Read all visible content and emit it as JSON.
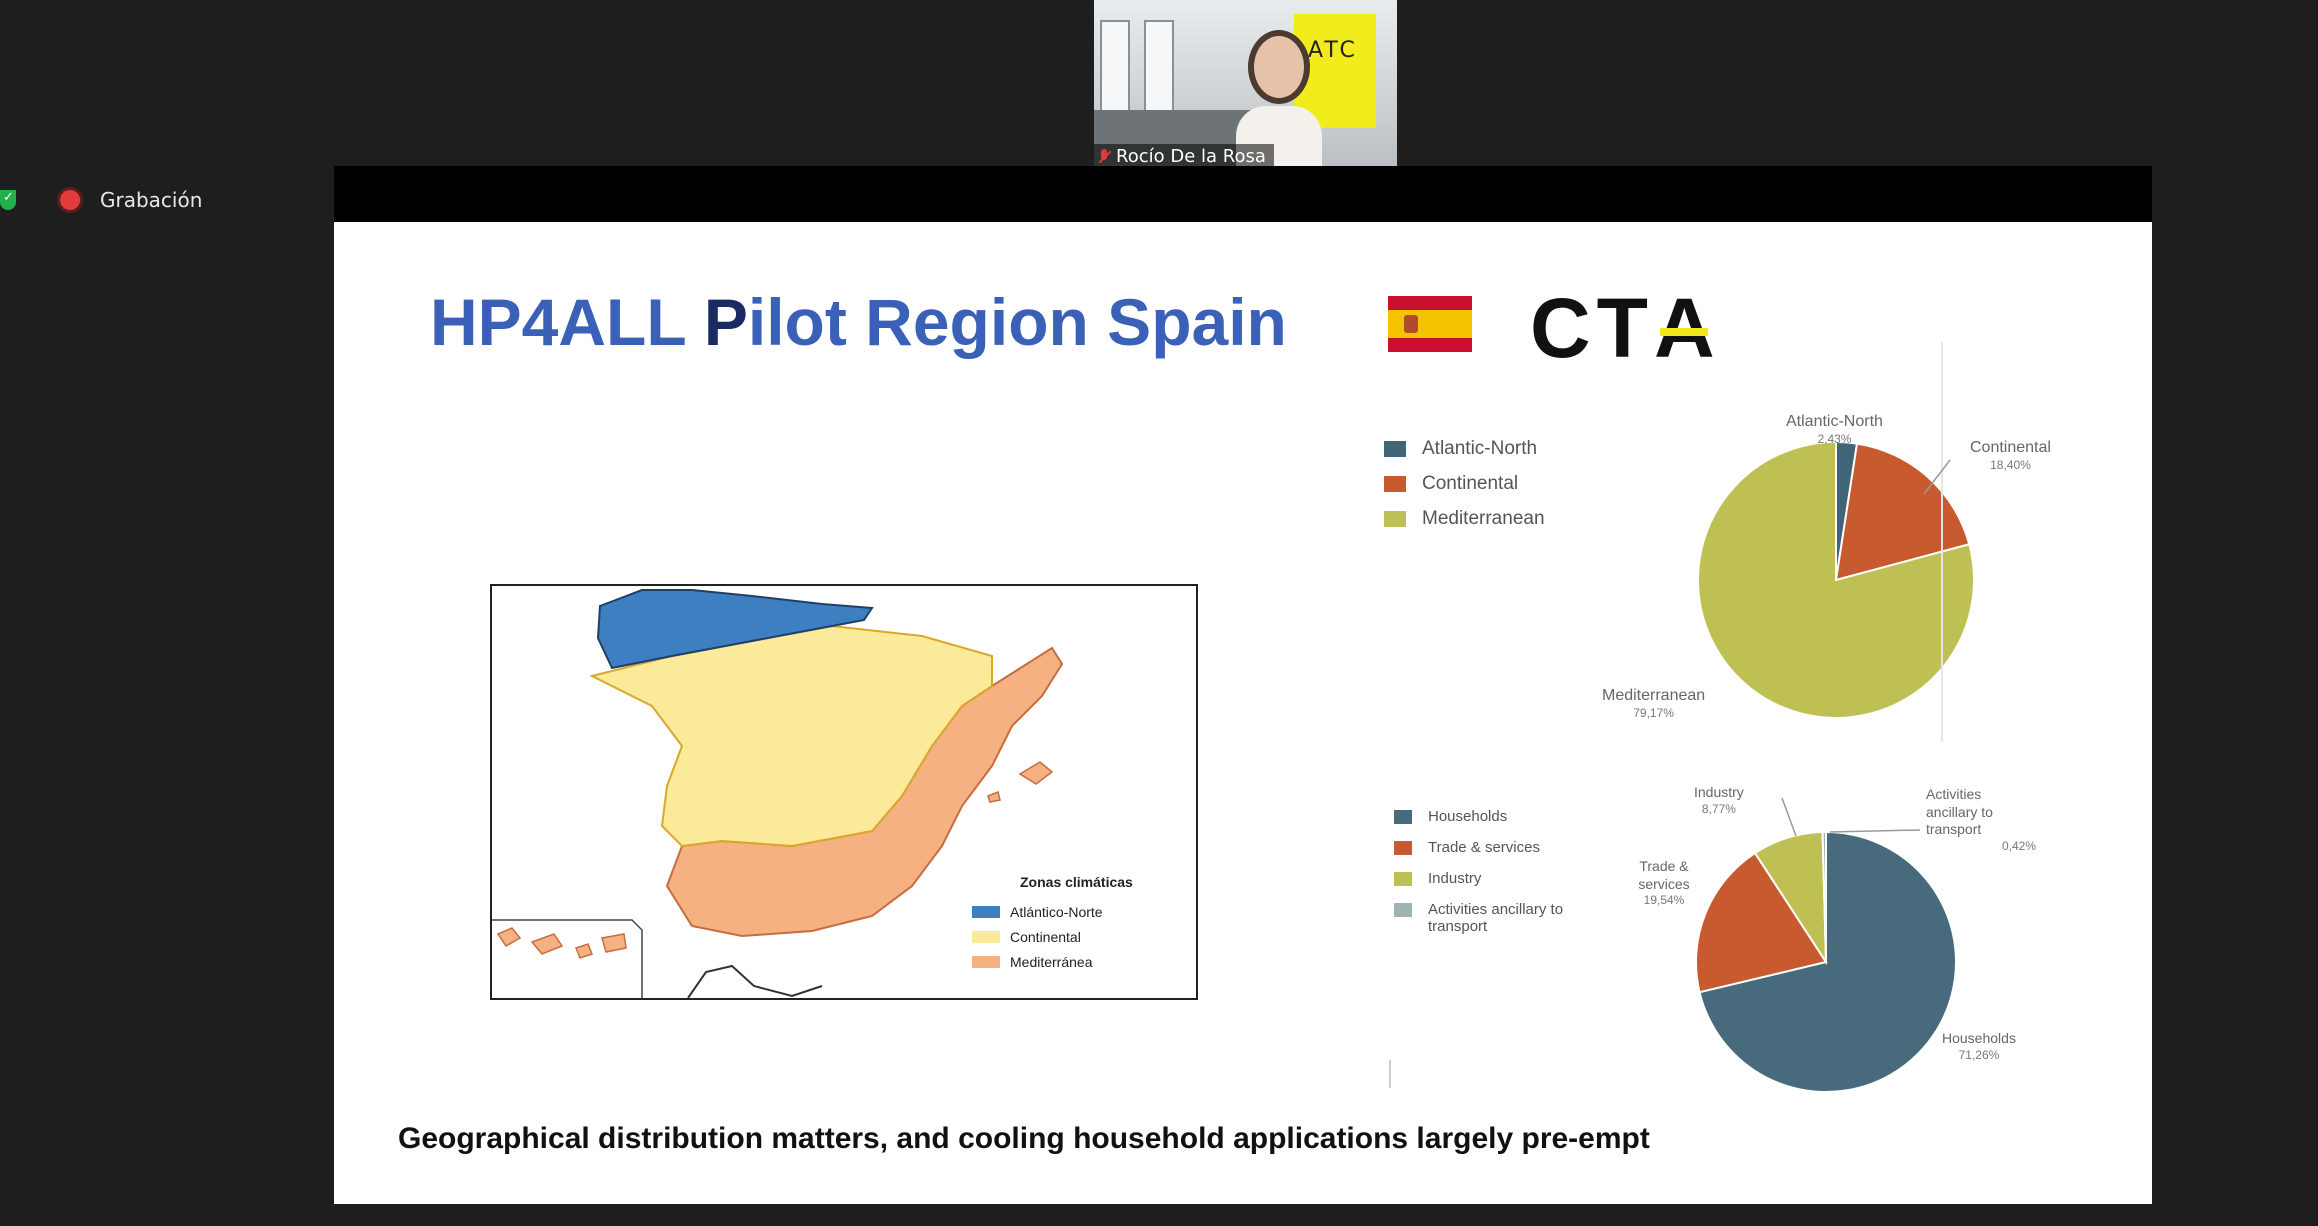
{
  "participant": {
    "name": "Rocío De la Rosa",
    "sign_text": "ATC"
  },
  "recording": {
    "label": "Grabación"
  },
  "slide": {
    "title_part1": "HP4ALL ",
    "title_part2": "P",
    "title_part3": "ilot Region Spain",
    "logo_text_c": "C",
    "logo_text_t": "T",
    "logo_text_a": "A",
    "caption": "Geographical distribution matters, and cooling household applications largely pre-empt",
    "map_legend": {
      "title": "Zonas climáticas",
      "items": [
        {
          "label": "Atlántico-Norte",
          "color": "#3e7fc1"
        },
        {
          "label": "Continental",
          "color": "#faea9a"
        },
        {
          "label": "Mediterránea",
          "color": "#f6b182"
        }
      ]
    }
  },
  "colors": {
    "title_blue": "#3b60b8",
    "title_dark": "#1a2a63",
    "atlantic": "#3f6576",
    "continental": "#c75a2f",
    "mediterranean": "#bfc053",
    "households": "#476a7d",
    "trade": "#c75a2f",
    "industry": "#bfc053",
    "ancillary": "#9fb3b3"
  },
  "chart_data": [
    {
      "type": "pie",
      "title": "",
      "legend": [
        "Atlantic-North",
        "Continental",
        "Mediterranean"
      ],
      "categories": [
        "Atlantic-North",
        "Continental",
        "Mediterranean"
      ],
      "values": [
        2.43,
        18.4,
        79.17
      ],
      "value_labels": [
        "2,43%",
        "18,40%",
        "79,17%"
      ],
      "legend_position": "left"
    },
    {
      "type": "pie",
      "title": "",
      "legend": [
        "Households",
        "Trade & services",
        "Industry",
        "Activities ancillary to transport"
      ],
      "categories": [
        "Households",
        "Trade & services",
        "Industry",
        "Activities ancillary to transport"
      ],
      "values": [
        71.26,
        19.54,
        8.77,
        0.42
      ],
      "value_labels": [
        "71,26%",
        "19,54%",
        "8,77%",
        "0,42%"
      ],
      "legend_position": "left"
    }
  ]
}
